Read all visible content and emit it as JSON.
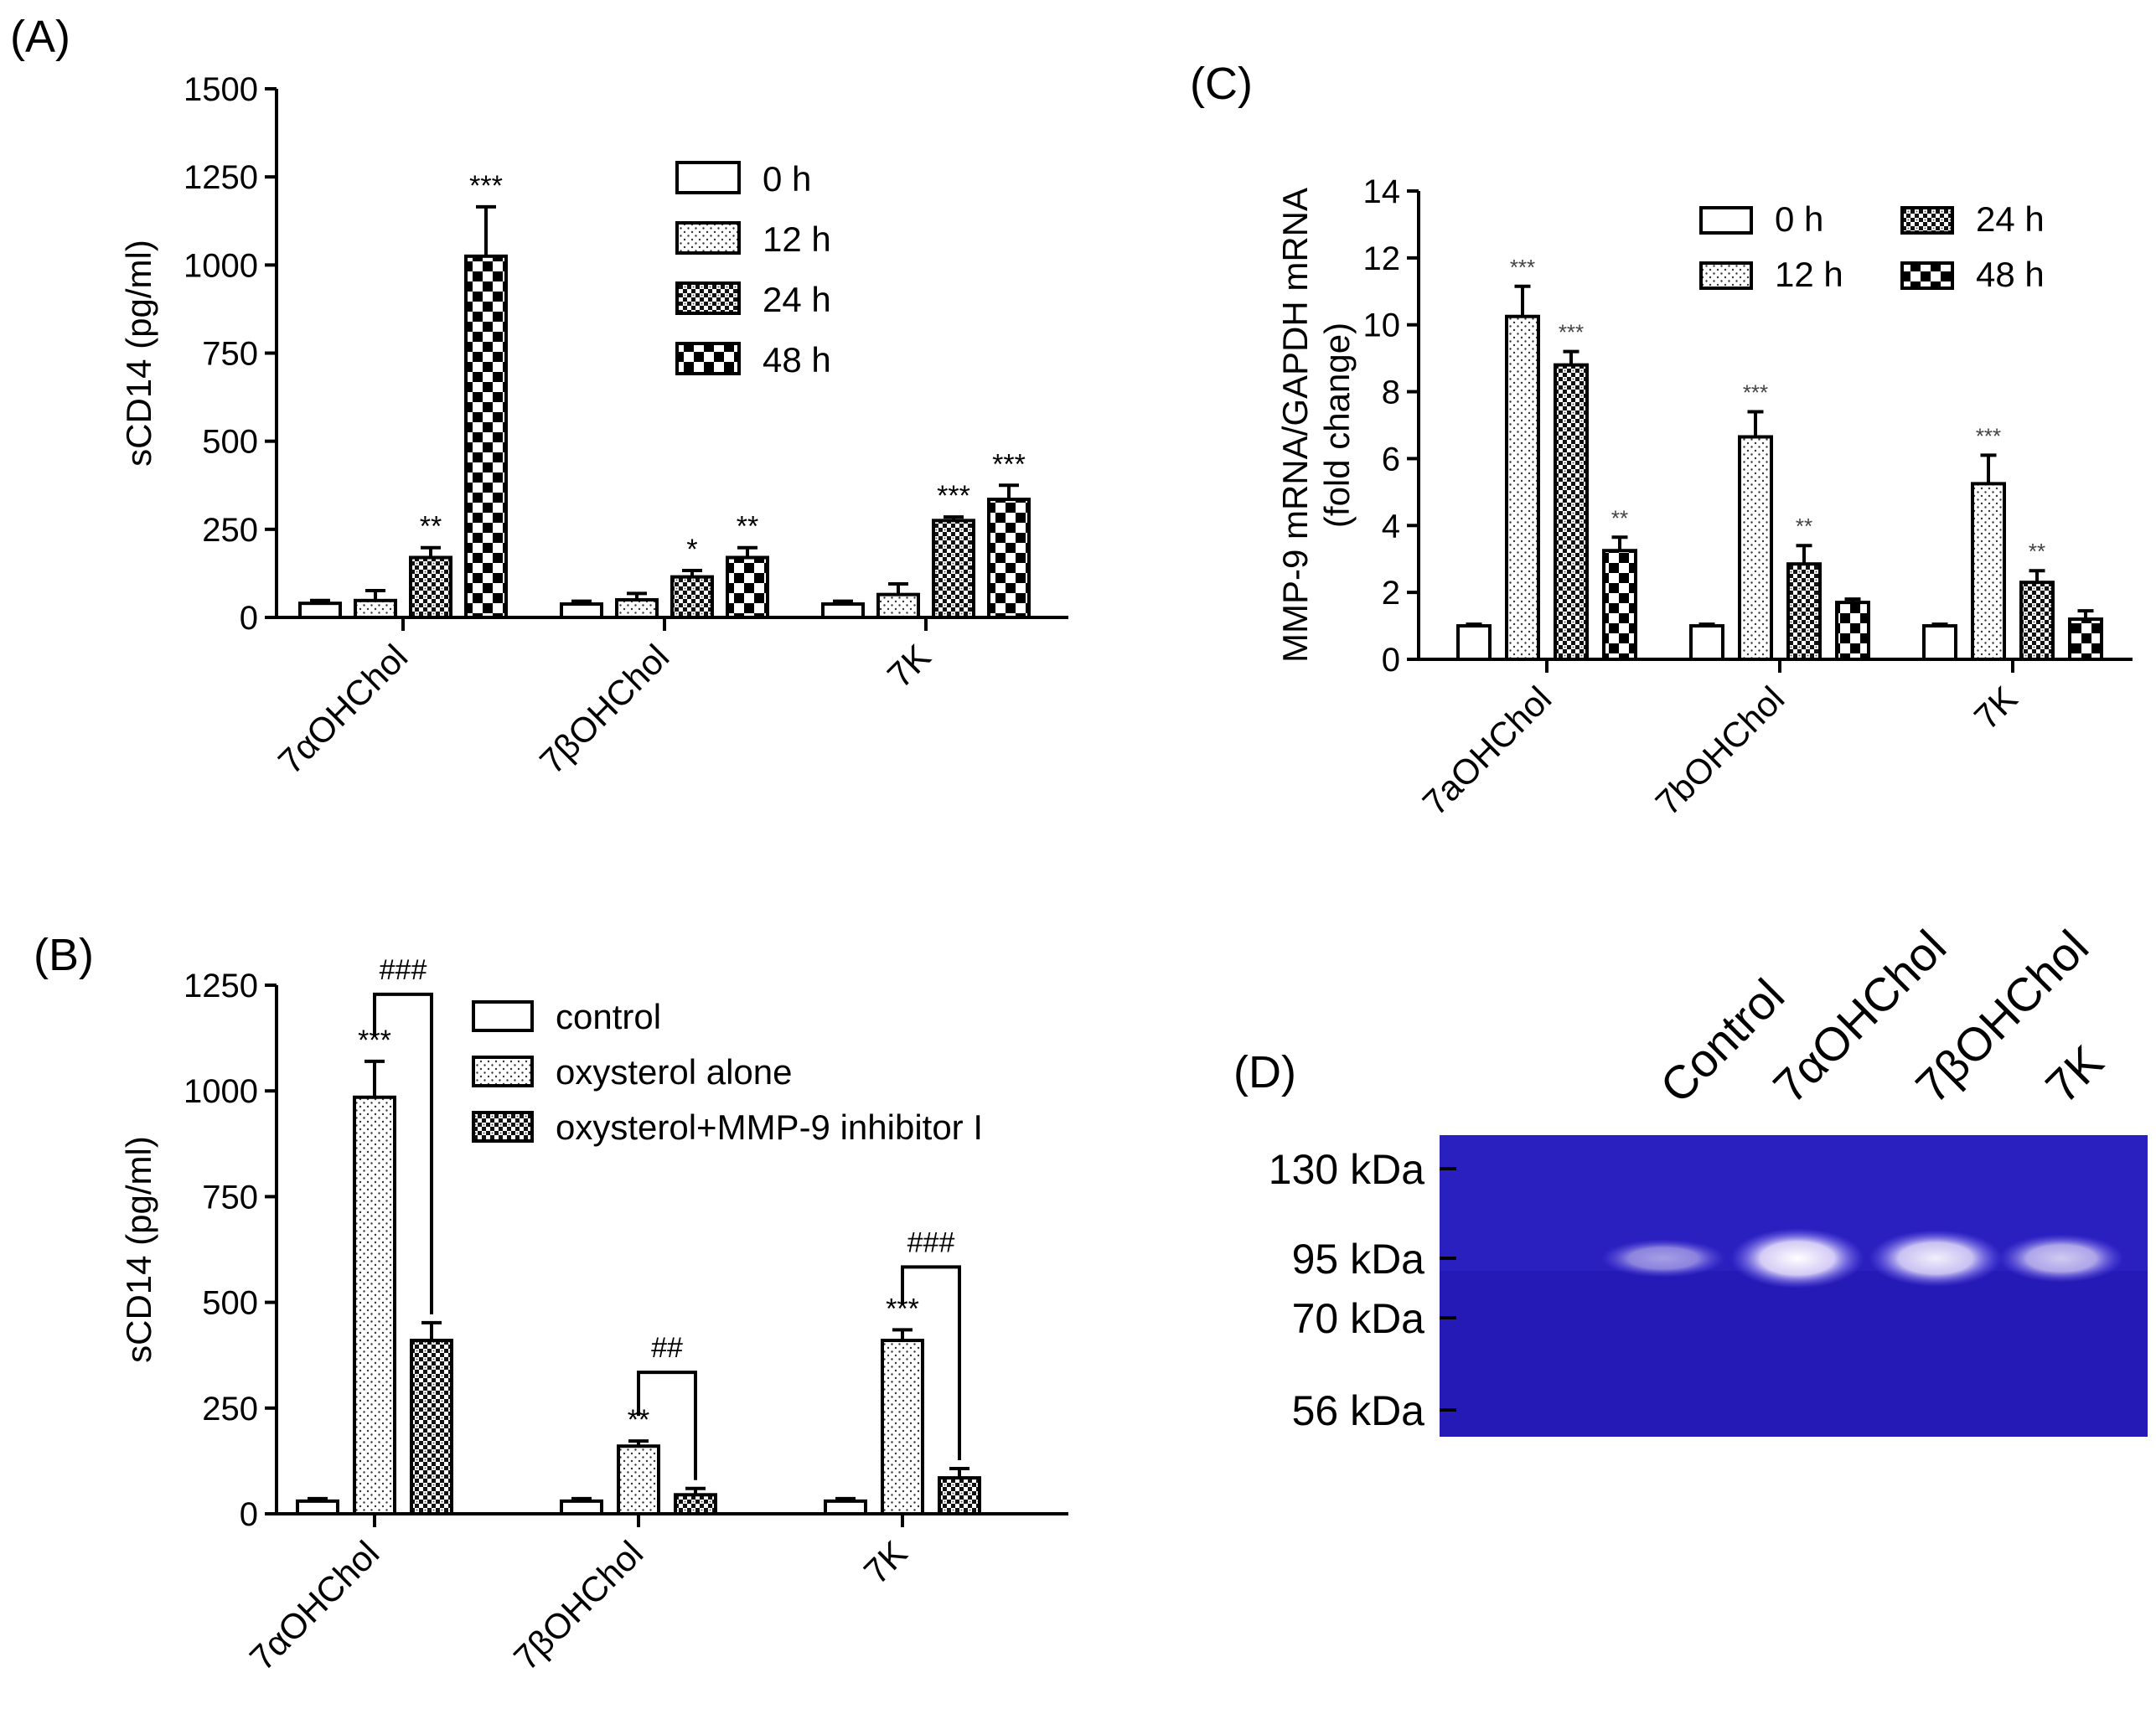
{
  "panels": {
    "A": {
      "label": "(A)",
      "chart_data": {
        "type": "bar",
        "categories": [
          "7αOHChol",
          "7βOHChol",
          "7K"
        ],
        "ylabel": "sCD14 (pg/ml)",
        "ylim": [
          0,
          1500
        ],
        "yticks": [
          0,
          250,
          500,
          750,
          1000,
          1250,
          1500
        ],
        "legend": [
          "0 h",
          "12 h",
          "24 h",
          "48 h"
        ],
        "legend_position": "top-right",
        "series": [
          {
            "name": "0 h",
            "pattern": "open",
            "values": [
              40,
              38,
              38
            ],
            "errors": [
              8,
              8,
              8
            ],
            "sig": [
              "",
              "",
              ""
            ]
          },
          {
            "name": "12 h",
            "pattern": "dots",
            "values": [
              48,
              50,
              65
            ],
            "errors": [
              28,
              18,
              30
            ],
            "sig": [
              "",
              "",
              ""
            ]
          },
          {
            "name": "24 h",
            "pattern": "checker",
            "values": [
              170,
              115,
              275
            ],
            "errors": [
              28,
              18,
              10
            ],
            "sig": [
              "**",
              "*",
              "***"
            ]
          },
          {
            "name": "48 h",
            "pattern": "big",
            "values": [
              1025,
              170,
              335
            ],
            "errors": [
              140,
              28,
              40
            ],
            "sig": [
              "***",
              "**",
              "***"
            ]
          }
        ]
      }
    },
    "B": {
      "label": "(B)",
      "chart_data": {
        "type": "bar",
        "categories": [
          "7αOHChol",
          "7βOHChol",
          "7K"
        ],
        "ylabel": "sCD14 (pg/ml)",
        "ylim": [
          0,
          1250
        ],
        "yticks": [
          0,
          250,
          500,
          750,
          1000,
          1250
        ],
        "legend": [
          "control",
          "oxysterol alone",
          "oxysterol+MMP-9 inhibitor I"
        ],
        "legend_position": "top-right",
        "series": [
          {
            "name": "control",
            "pattern": "open",
            "values": [
              30,
              30,
              30
            ],
            "errors": [
              6,
              6,
              6
            ],
            "sig": [
              "",
              "",
              ""
            ]
          },
          {
            "name": "oxysterol alone",
            "pattern": "dots",
            "values": [
              985,
              160,
              410
            ],
            "errors": [
              85,
              12,
              25
            ],
            "sig": [
              "***",
              "**",
              "***"
            ]
          },
          {
            "name": "oxysterol+MMP-9 inhibitor I",
            "pattern": "checker",
            "values": [
              410,
              45,
              85
            ],
            "errors": [
              42,
              15,
              22
            ],
            "sig": [
              "",
              "",
              ""
            ]
          }
        ],
        "brackets": [
          "###",
          "##",
          "###"
        ]
      }
    },
    "C": {
      "label": "(C)",
      "chart_data": {
        "type": "bar",
        "categories": [
          "7aOHChol",
          "7bOHChol",
          "7K"
        ],
        "ylabel_lines": [
          "MMP-9 mRNA/GAPDH mRNA",
          "(fold change)"
        ],
        "ylim": [
          0,
          14
        ],
        "yticks": [
          0,
          2,
          4,
          6,
          8,
          10,
          12,
          14
        ],
        "legend": [
          "0 h",
          "12 h",
          "24 h",
          "48 h"
        ],
        "legend_position": "top-right",
        "series": [
          {
            "name": "0 h",
            "pattern": "open",
            "values": [
              1.0,
              1.0,
              1.0
            ],
            "errors": [
              0.05,
              0.05,
              0.05
            ],
            "sig": [
              "",
              "",
              ""
            ]
          },
          {
            "name": "12 h",
            "pattern": "dots",
            "values": [
              10.25,
              6.65,
              5.25
            ],
            "errors": [
              0.9,
              0.75,
              0.85
            ],
            "sig": [
              "***",
              "***",
              "***"
            ]
          },
          {
            "name": "24 h",
            "pattern": "checker",
            "values": [
              8.8,
              2.85,
              2.3
            ],
            "errors": [
              0.4,
              0.55,
              0.35
            ],
            "sig": [
              "***",
              "**",
              "**"
            ]
          },
          {
            "name": "48 h",
            "pattern": "big",
            "values": [
              3.25,
              1.7,
              1.2
            ],
            "errors": [
              0.4,
              0.1,
              0.25
            ],
            "sig": [
              "**",
              "",
              ""
            ]
          }
        ]
      }
    },
    "D": {
      "label": "(D)",
      "lanes": [
        "Control",
        "7αOHChol",
        "7βOHChol",
        "7K"
      ],
      "markers": [
        "130 kDa",
        "95 kDa",
        "70 kDa",
        "56 kDa"
      ],
      "band_intensity": [
        0.35,
        1.0,
        0.9,
        0.65
      ],
      "gel_color": "#2a1fbf"
    }
  }
}
